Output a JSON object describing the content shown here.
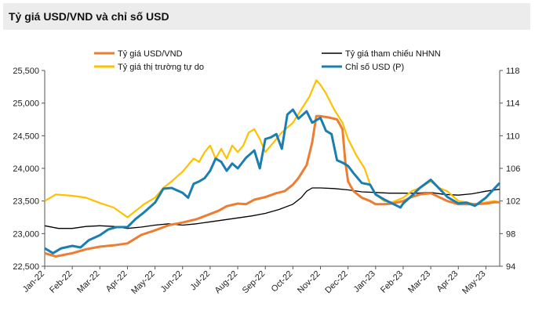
{
  "chart_data": {
    "type": "line",
    "title": "Tỷ giá USD/VND và chỉ số USD",
    "x": [
      "Jan-22",
      "Feb-22",
      "Mar-22",
      "Apr-22",
      "May-22",
      "Jun-22",
      "Jul-22",
      "Aug-22",
      "Sep-22",
      "Oct-22",
      "Nov-22",
      "Dec-22",
      "Jan-23",
      "Feb-23",
      "Mar-23",
      "Apr-23",
      "May-23"
    ],
    "y_left": {
      "min": 22500,
      "max": 25500,
      "ticks": [
        "22,500",
        "23,000",
        "23,500",
        "24,000",
        "24,500",
        "25,000",
        "25,500"
      ]
    },
    "y_right": {
      "min": 94,
      "max": 118,
      "ticks": [
        "94",
        "98",
        "102",
        "106",
        "110",
        "114",
        "118"
      ]
    },
    "series": [
      {
        "name": "Tỷ giá USD/VND",
        "axis": "left",
        "color": "#ed7d31",
        "points": [
          [
            0,
            22700
          ],
          [
            0.4,
            22650
          ],
          [
            1,
            22700
          ],
          [
            1.5,
            22760
          ],
          [
            2,
            22800
          ],
          [
            2.5,
            22820
          ],
          [
            3,
            22850
          ],
          [
            3.5,
            22980
          ],
          [
            4,
            23050
          ],
          [
            4.5,
            23130
          ],
          [
            5,
            23170
          ],
          [
            5.5,
            23220
          ],
          [
            6,
            23300
          ],
          [
            6.3,
            23350
          ],
          [
            6.6,
            23420
          ],
          [
            7,
            23460
          ],
          [
            7.3,
            23450
          ],
          [
            7.6,
            23520
          ],
          [
            8,
            23560
          ],
          [
            8.4,
            23620
          ],
          [
            8.7,
            23650
          ],
          [
            9,
            23750
          ],
          [
            9.2,
            23850
          ],
          [
            9.5,
            24050
          ],
          [
            9.7,
            24400
          ],
          [
            9.85,
            24800
          ],
          [
            10,
            24800
          ],
          [
            10.3,
            24780
          ],
          [
            10.6,
            24750
          ],
          [
            10.8,
            24600
          ],
          [
            10.9,
            24100
          ],
          [
            11,
            23800
          ],
          [
            11.2,
            23650
          ],
          [
            11.5,
            23550
          ],
          [
            11.8,
            23500
          ],
          [
            12,
            23450
          ],
          [
            12.3,
            23450
          ],
          [
            12.6,
            23460
          ],
          [
            13,
            23500
          ],
          [
            13.3,
            23560
          ],
          [
            13.6,
            23600
          ],
          [
            14,
            23620
          ],
          [
            14.3,
            23560
          ],
          [
            14.6,
            23500
          ],
          [
            15,
            23450
          ],
          [
            15.3,
            23450
          ],
          [
            15.6,
            23450
          ],
          [
            16,
            23460
          ],
          [
            16.3,
            23480
          ],
          [
            16.5,
            23480
          ]
        ]
      },
      {
        "name": "Tỷ giá thị trường tự do",
        "axis": "left",
        "color": "#ffc000",
        "points": [
          [
            0,
            23500
          ],
          [
            0.4,
            23600
          ],
          [
            1,
            23580
          ],
          [
            1.5,
            23550
          ],
          [
            2,
            23470
          ],
          [
            2.5,
            23400
          ],
          [
            3,
            23250
          ],
          [
            3.3,
            23350
          ],
          [
            3.6,
            23450
          ],
          [
            4,
            23550
          ],
          [
            4.3,
            23700
          ],
          [
            4.6,
            23800
          ],
          [
            5,
            23950
          ],
          [
            5.2,
            24050
          ],
          [
            5.4,
            24150
          ],
          [
            5.6,
            24100
          ],
          [
            5.8,
            24250
          ],
          [
            6,
            24350
          ],
          [
            6.2,
            24150
          ],
          [
            6.4,
            24300
          ],
          [
            6.6,
            24150
          ],
          [
            6.8,
            24350
          ],
          [
            7,
            24250
          ],
          [
            7.2,
            24350
          ],
          [
            7.4,
            24550
          ],
          [
            7.6,
            24600
          ],
          [
            7.8,
            24450
          ],
          [
            8,
            24250
          ],
          [
            8.3,
            24400
          ],
          [
            8.6,
            24550
          ],
          [
            9,
            24700
          ],
          [
            9.3,
            24900
          ],
          [
            9.6,
            25100
          ],
          [
            9.85,
            25350
          ],
          [
            10,
            25280
          ],
          [
            10.2,
            25150
          ],
          [
            10.5,
            24900
          ],
          [
            10.8,
            24700
          ],
          [
            11,
            24450
          ],
          [
            11.3,
            24200
          ],
          [
            11.6,
            24000
          ],
          [
            11.8,
            23750
          ],
          [
            12,
            23600
          ],
          [
            12.3,
            23500
          ],
          [
            12.6,
            23480
          ],
          [
            13,
            23550
          ],
          [
            13.3,
            23650
          ],
          [
            13.6,
            23700
          ],
          [
            14,
            23800
          ],
          [
            14.3,
            23700
          ],
          [
            14.6,
            23650
          ],
          [
            15,
            23500
          ],
          [
            15.3,
            23480
          ],
          [
            15.6,
            23450
          ],
          [
            16,
            23480
          ],
          [
            16.3,
            23500
          ],
          [
            16.5,
            23480
          ]
        ]
      },
      {
        "name": "Tỷ giá tham chiếu NHNN",
        "axis": "left",
        "color": "#000000",
        "points": [
          [
            0,
            23120
          ],
          [
            0.5,
            23080
          ],
          [
            1,
            23080
          ],
          [
            1.5,
            23110
          ],
          [
            2,
            23120
          ],
          [
            2.5,
            23110
          ],
          [
            3,
            23080
          ],
          [
            3.5,
            23100
          ],
          [
            4,
            23130
          ],
          [
            4.5,
            23150
          ],
          [
            5,
            23130
          ],
          [
            5.5,
            23150
          ],
          [
            6,
            23180
          ],
          [
            6.5,
            23210
          ],
          [
            7,
            23240
          ],
          [
            7.5,
            23270
          ],
          [
            8,
            23310
          ],
          [
            8.5,
            23370
          ],
          [
            9,
            23450
          ],
          [
            9.3,
            23550
          ],
          [
            9.5,
            23650
          ],
          [
            9.7,
            23700
          ],
          [
            10,
            23700
          ],
          [
            10.5,
            23690
          ],
          [
            11,
            23670
          ],
          [
            11.5,
            23640
          ],
          [
            12,
            23630
          ],
          [
            12.5,
            23620
          ],
          [
            13,
            23620
          ],
          [
            13.5,
            23620
          ],
          [
            14,
            23630
          ],
          [
            14.5,
            23600
          ],
          [
            15,
            23590
          ],
          [
            15.5,
            23610
          ],
          [
            16,
            23650
          ],
          [
            16.5,
            23680
          ]
        ]
      },
      {
        "name": "Chỉ số USD (P)",
        "axis": "right",
        "color": "#1a7fb0",
        "points": [
          [
            0,
            96.2
          ],
          [
            0.3,
            95.6
          ],
          [
            0.6,
            96.2
          ],
          [
            1,
            96.5
          ],
          [
            1.3,
            96.3
          ],
          [
            1.6,
            97.2
          ],
          [
            2,
            97.8
          ],
          [
            2.3,
            98.5
          ],
          [
            2.6,
            98.8
          ],
          [
            3,
            98.8
          ],
          [
            3.3,
            99.8
          ],
          [
            3.6,
            100.6
          ],
          [
            4,
            101.8
          ],
          [
            4.3,
            103.5
          ],
          [
            4.6,
            103.6
          ],
          [
            5,
            103.0
          ],
          [
            5.2,
            102.4
          ],
          [
            5.4,
            104.1
          ],
          [
            5.6,
            104.4
          ],
          [
            5.8,
            104.8
          ],
          [
            6,
            105.7
          ],
          [
            6.2,
            107.2
          ],
          [
            6.4,
            106.8
          ],
          [
            6.6,
            105.7
          ],
          [
            6.8,
            106.6
          ],
          [
            7,
            106.0
          ],
          [
            7.3,
            107.3
          ],
          [
            7.6,
            108.2
          ],
          [
            7.8,
            106.0
          ],
          [
            8,
            109.6
          ],
          [
            8.2,
            109.8
          ],
          [
            8.4,
            110.2
          ],
          [
            8.6,
            108.4
          ],
          [
            8.8,
            112.6
          ],
          [
            9,
            113.2
          ],
          [
            9.2,
            112.1
          ],
          [
            9.5,
            113.0
          ],
          [
            9.7,
            111.6
          ],
          [
            10,
            112.2
          ],
          [
            10.2,
            110.6
          ],
          [
            10.4,
            110.2
          ],
          [
            10.6,
            107.0
          ],
          [
            10.8,
            106.7
          ],
          [
            11,
            106.3
          ],
          [
            11.2,
            105.4
          ],
          [
            11.5,
            104.2
          ],
          [
            11.8,
            104.0
          ],
          [
            12,
            102.8
          ],
          [
            12.3,
            102.2
          ],
          [
            12.6,
            101.7
          ],
          [
            12.9,
            101.2
          ],
          [
            13,
            101.7
          ],
          [
            13.3,
            102.6
          ],
          [
            13.6,
            103.6
          ],
          [
            14,
            104.6
          ],
          [
            14.2,
            103.9
          ],
          [
            14.4,
            103.2
          ],
          [
            14.6,
            102.5
          ],
          [
            15,
            101.7
          ],
          [
            15.3,
            101.8
          ],
          [
            15.6,
            101.4
          ],
          [
            16,
            102.4
          ],
          [
            16.3,
            103.5
          ],
          [
            16.5,
            104.2
          ]
        ]
      }
    ],
    "legend": {
      "placement": "top",
      "items": [
        {
          "label": "Tỷ giá USD/VND",
          "color": "#ed7d31"
        },
        {
          "label": "Tỷ giá tham chiếu NHNN",
          "color": "#000000"
        },
        {
          "label": "Tỷ giá thị trường tự do",
          "color": "#ffc000"
        },
        {
          "label": "Chỉ số USD (P)",
          "color": "#1a7fb0"
        }
      ]
    },
    "grid": false
  }
}
